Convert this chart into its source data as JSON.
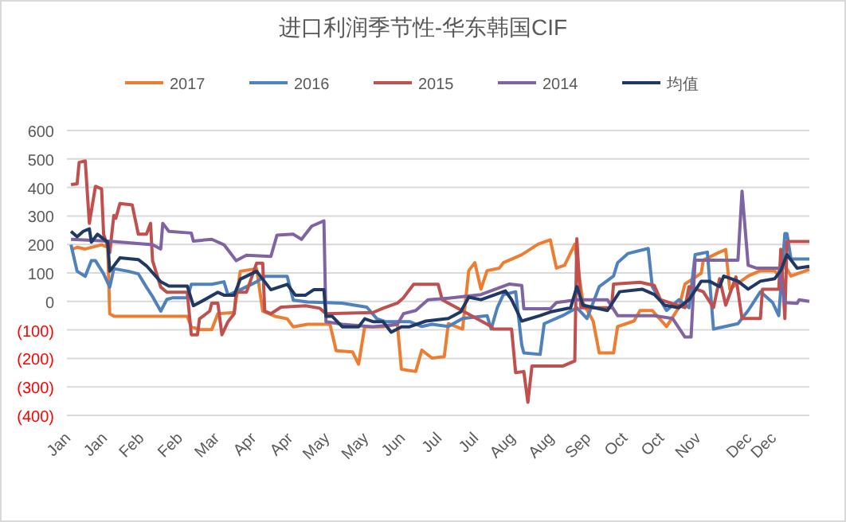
{
  "chart_data": {
    "type": "line",
    "title": "进口利润季节性-华东韩国CIF",
    "legend": "top",
    "grid": "y",
    "xlim": [
      "--01-01",
      "--12-31"
    ],
    "xticks": [
      {
        "value": "--01-01",
        "label": "Jan"
      },
      {
        "value": "--01-19",
        "label": "Jan"
      },
      {
        "value": "--02-06",
        "label": "Feb"
      },
      {
        "value": "--02-25",
        "label": "Feb"
      },
      {
        "value": "--03-15",
        "label": "Mar"
      },
      {
        "value": "--04-02",
        "label": "Apr"
      },
      {
        "value": "--04-20",
        "label": "Apr"
      },
      {
        "value": "--05-08",
        "label": "May"
      },
      {
        "value": "--05-27",
        "label": "May"
      },
      {
        "value": "--06-14",
        "label": "Jun"
      },
      {
        "value": "--07-02",
        "label": "Jul"
      },
      {
        "value": "--07-20",
        "label": "Jul"
      },
      {
        "value": "--08-07",
        "label": "Aug"
      },
      {
        "value": "--08-26",
        "label": "Aug"
      },
      {
        "value": "--09-13",
        "label": "Sep"
      },
      {
        "value": "--10-01",
        "label": "Oct"
      },
      {
        "value": "--10-19",
        "label": "Oct"
      },
      {
        "value": "--11-06",
        "label": "Nov"
      },
      {
        "value": "--12-01",
        "label": "Dec"
      },
      {
        "value": "--12-13",
        "label": "Dec"
      }
    ],
    "ylim": [
      -400,
      600
    ],
    "yticks": [
      600,
      500,
      400,
      300,
      200,
      100,
      0,
      {
        "value": -100,
        "label": "(100)"
      },
      {
        "value": -200,
        "label": "(200)"
      },
      {
        "value": -300,
        "label": "(300)"
      },
      {
        "value": -400,
        "label": "(400)"
      }
    ],
    "series": [
      {
        "name": "2017",
        "color": "#ed7d31",
        "x": [
          "--01-03",
          "--01-06",
          "--01-10",
          "--01-18",
          "--01-21",
          "--01-22",
          "--01-24",
          "--02-16",
          "--03-01",
          "--03-03",
          "--03-07",
          "--03-13",
          "--03-16",
          "--03-24",
          "--03-27",
          "--04-04",
          "--04-07",
          "--04-13",
          "--04-19",
          "--04-22",
          "--04-29",
          "--05-10",
          "--05-13",
          "--05-21",
          "--05-24",
          "--05-27",
          "--06-05",
          "--06-12",
          "--06-14",
          "--06-21",
          "--06-24",
          "--06-29",
          "--07-05",
          "--07-07",
          "--07-14",
          "--07-17",
          "--07-20",
          "--07-23",
          "--07-26",
          "--08-01",
          "--08-03",
          "--08-12",
          "--08-20",
          "--08-26",
          "--08-29",
          "--09-02",
          "--09-07",
          "--09-11",
          "--09-16",
          "--09-19",
          "--09-26",
          "--09-28",
          "--10-06",
          "--10-09",
          "--10-15",
          "--10-22",
          "--10-28",
          "--10-31",
          "--11-08",
          "--11-09",
          "--11-17",
          "--11-20",
          "--11-22",
          "--12-01",
          "--12-07",
          "--12-14",
          "--12-16",
          "--12-19",
          "--12-22",
          "--12-31"
        ],
        "values": [
          181,
          190,
          184,
          199,
          190,
          -43,
          -52,
          -52,
          -52,
          -89,
          -99,
          -99,
          -43,
          -39,
          106,
          115,
          -34,
          -52,
          -61,
          -89,
          -80,
          -80,
          -173,
          -177,
          -220,
          -89,
          -89,
          -80,
          -238,
          -246,
          -171,
          -199,
          -194,
          -78,
          -97,
          108,
          136,
          43,
          108,
          117,
          136,
          164,
          201,
          216,
          117,
          127,
          201,
          -4,
          -69,
          -181,
          -181,
          -88,
          -69,
          -32,
          -32,
          -88,
          -22,
          61,
          99,
          145,
          173,
          182,
          43,
          89,
          108,
          108,
          89,
          127,
          89,
          112
        ]
      },
      {
        "name": "2016",
        "color": "#4f81bd",
        "x": [
          "--01-03",
          "--01-06",
          "--01-10",
          "--01-13",
          "--01-15",
          "--01-19",
          "--01-22",
          "--01-24",
          "--01-31",
          "--02-05",
          "--02-09",
          "--02-12",
          "--02-16",
          "--02-19",
          "--02-22",
          "--03-01",
          "--03-03",
          "--03-13",
          "--03-19",
          "--03-21",
          "--03-27",
          "--04-04",
          "--04-08",
          "--04-19",
          "--04-22",
          "--04-29",
          "--05-16",
          "--05-28",
          "--06-02",
          "--06-06",
          "--06-18",
          "--06-24",
          "--06-29",
          "--07-07",
          "--07-14",
          "--07-26",
          "--07-28",
          "--07-31",
          "--08-03",
          "--08-09",
          "--08-12",
          "--08-13",
          "--08-21",
          "--08-23",
          "--09-01",
          "--09-08",
          "--09-13",
          "--09-19",
          "--09-26",
          "--09-28",
          "--10-03",
          "--10-13",
          "--10-15",
          "--10-22",
          "--10-28",
          "--11-02",
          "--11-05",
          "--11-11",
          "--11-14",
          "--11-26",
          "--12-01",
          "--12-07",
          "--12-13",
          "--12-16",
          "--12-19",
          "--12-20",
          "--12-22",
          "--12-31"
        ],
        "values": [
          199,
          106,
          88,
          143,
          143,
          97,
          50,
          115,
          106,
          97,
          50,
          17,
          -34,
          7,
          13,
          13,
          60,
          60,
          69,
          22,
          41,
          69,
          88,
          88,
          4,
          -2,
          -6,
          -20,
          -61,
          -71,
          -71,
          -88,
          -80,
          -88,
          -60,
          -50,
          -97,
          -22,
          24,
          34,
          -153,
          -181,
          -186,
          -78,
          -50,
          -22,
          -60,
          52,
          89,
          136,
          168,
          186,
          52,
          -32,
          6,
          -22,
          164,
          173,
          -97,
          -78,
          -32,
          34,
          -4,
          -50,
          238,
          238,
          149,
          149
        ]
      },
      {
        "name": "2015",
        "color": "#c0504d",
        "x": [
          "--01-03",
          "--01-06",
          "--01-07",
          "--01-10",
          "--01-12",
          "--01-15",
          "--01-18",
          "--01-19",
          "--01-22",
          "--01-24",
          "--01-25",
          "--01-27",
          "--02-02",
          "--02-05",
          "--02-09",
          "--02-11",
          "--02-12",
          "--02-16",
          "--02-19",
          "--03-01",
          "--03-03",
          "--03-06",
          "--03-07",
          "--03-12",
          "--03-13",
          "--03-16",
          "--03-18",
          "--03-21",
          "--03-24",
          "--03-25",
          "--03-30",
          "--04-04",
          "--04-07",
          "--04-08",
          "--04-11",
          "--04-16",
          "--04-28",
          "--05-05",
          "--05-08",
          "--05-31",
          "--06-05",
          "--06-12",
          "--06-15",
          "--06-20",
          "--07-02",
          "--07-04",
          "--07-28",
          "--07-29",
          "--08-07",
          "--08-09",
          "--08-13",
          "--08-15",
          "--08-17",
          "--09-01",
          "--09-07",
          "--09-08",
          "--09-10",
          "--09-25",
          "--09-26",
          "--10-09",
          "--10-16",
          "--10-19",
          "--10-31",
          "--11-02",
          "--11-09",
          "--11-14",
          "--11-17",
          "--11-20",
          "--11-25",
          "--11-28",
          "--12-07",
          "--12-08",
          "--12-16",
          "--12-17",
          "--12-19",
          "--12-20",
          "--12-31"
        ],
        "values": [
          410,
          413,
          488,
          493,
          274,
          404,
          395,
          236,
          171,
          302,
          292,
          344,
          339,
          236,
          236,
          274,
          143,
          50,
          32,
          32,
          -117,
          -117,
          -61,
          -34,
          -6,
          -6,
          -117,
          -71,
          -43,
          32,
          32,
          134,
          134,
          -34,
          -43,
          -20,
          -15,
          -24,
          -43,
          -39,
          -24,
          -6,
          13,
          60,
          60,
          6,
          -88,
          -97,
          -97,
          -250,
          -246,
          -354,
          -227,
          -227,
          -209,
          220,
          -22,
          -22,
          61,
          67,
          56,
          6,
          -22,
          52,
          34,
          -22,
          80,
          -13,
          86,
          -60,
          -60,
          43,
          43,
          183,
          -60,
          210,
          210
        ]
      },
      {
        "name": "2014",
        "color": "#8064a2",
        "x": [
          "--01-03",
          "--01-21",
          "--02-12",
          "--02-16",
          "--02-17",
          "--02-20",
          "--03-03",
          "--03-04",
          "--03-13",
          "--03-19",
          "--03-22",
          "--03-25",
          "--03-30",
          "--04-11",
          "--04-14",
          "--04-22",
          "--04-26",
          "--05-01",
          "--05-07",
          "--05-08",
          "--05-16",
          "--05-31",
          "--06-12",
          "--06-15",
          "--06-21",
          "--06-27",
          "--07-07",
          "--07-23",
          "--08-06",
          "--08-12",
          "--08-13",
          "--08-26",
          "--08-29",
          "--09-08",
          "--09-23",
          "--09-28",
          "--10-16",
          "--10-25",
          "--10-31",
          "--11-03",
          "--11-05",
          "--11-26",
          "--11-28",
          "--12-01",
          "--12-05",
          "--12-16",
          "--12-19",
          "--12-25",
          "--12-26",
          "--12-31"
        ],
        "values": [
          218,
          212,
          199,
          184,
          274,
          246,
          240,
          212,
          218,
          199,
          171,
          143,
          162,
          158,
          233,
          236,
          218,
          264,
          283,
          -71,
          -80,
          -89,
          -80,
          -43,
          -32,
          6,
          11,
          24,
          61,
          56,
          -26,
          -26,
          -4,
          6,
          6,
          -50,
          -50,
          -60,
          -125,
          -125,
          145,
          145,
          387,
          127,
          117,
          117,
          -4,
          -7,
          6,
          0
        ]
      },
      {
        "name": "均值",
        "color": "#1f3864",
        "x": [
          "--01-03",
          "--01-06",
          "--01-09",
          "--01-12",
          "--01-13",
          "--01-16",
          "--01-21",
          "--01-22",
          "--01-27",
          "--02-05",
          "--02-09",
          "--02-16",
          "--02-20",
          "--03-01",
          "--03-04",
          "--03-09",
          "--03-16",
          "--03-19",
          "--03-24",
          "--03-27",
          "--04-04",
          "--04-08",
          "--04-11",
          "--04-19",
          "--04-23",
          "--04-28",
          "--05-02",
          "--05-07",
          "--05-08",
          "--05-11",
          "--05-16",
          "--05-24",
          "--05-27",
          "--05-31",
          "--06-05",
          "--06-09",
          "--06-14",
          "--06-18",
          "--06-26",
          "--07-07",
          "--07-13",
          "--07-17",
          "--07-23",
          "--08-04",
          "--08-07",
          "--08-12",
          "--08-21",
          "--08-26",
          "--09-05",
          "--09-08",
          "--09-11",
          "--09-23",
          "--09-29",
          "--10-10",
          "--10-16",
          "--10-21",
          "--10-28",
          "--11-02",
          "--11-08",
          "--11-12",
          "--11-17",
          "--11-19",
          "--11-26",
          "--12-01",
          "--12-07",
          "--12-14",
          "--12-17",
          "--12-20",
          "--12-25",
          "--12-31"
        ],
        "values": [
          246,
          227,
          246,
          255,
          208,
          236,
          208,
          106,
          153,
          147,
          125,
          69,
          54,
          54,
          -15,
          4,
          32,
          22,
          22,
          78,
          106,
          69,
          41,
          60,
          22,
          22,
          41,
          41,
          -52,
          -52,
          -89,
          -89,
          -61,
          -71,
          -71,
          -108,
          -89,
          -89,
          -69,
          -60,
          -37,
          15,
          6,
          37,
          6,
          -69,
          -50,
          -37,
          -22,
          52,
          -13,
          -32,
          34,
          43,
          24,
          -13,
          -22,
          6,
          71,
          71,
          52,
          89,
          71,
          43,
          71,
          80,
          108,
          164,
          117,
          123
        ]
      }
    ]
  }
}
